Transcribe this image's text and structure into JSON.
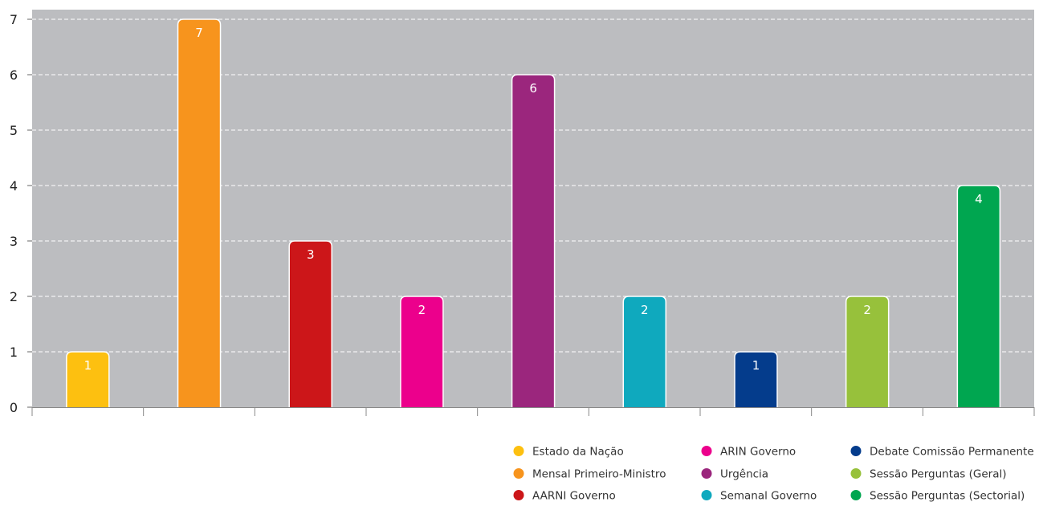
{
  "chart_data": {
    "type": "bar",
    "title": "",
    "xlabel": "",
    "ylabel": "",
    "ylim": [
      0,
      7
    ],
    "yticks": [
      0,
      1,
      2,
      3,
      4,
      5,
      6,
      7
    ],
    "grid": true,
    "legend_position": "bottom-right",
    "categories": [
      "Estado da Nação",
      "Mensal Primeiro-Ministro",
      "AARNI Governo",
      "ARIN Governo",
      "Urgência",
      "Semanal Governo",
      "Debate Comissão Permanente",
      "Sessão Perguntas (Geral)",
      "Sessão Perguntas (Sectorial)"
    ],
    "values": [
      1,
      7,
      3,
      2,
      6,
      2,
      1,
      2,
      4
    ],
    "colors": [
      "#fdc010",
      "#f7941d",
      "#cc1619",
      "#ec008c",
      "#9b267d",
      "#0fa9be",
      "#043c8c",
      "#97c13b",
      "#00a650"
    ],
    "background_color": "#bcbdc0"
  }
}
